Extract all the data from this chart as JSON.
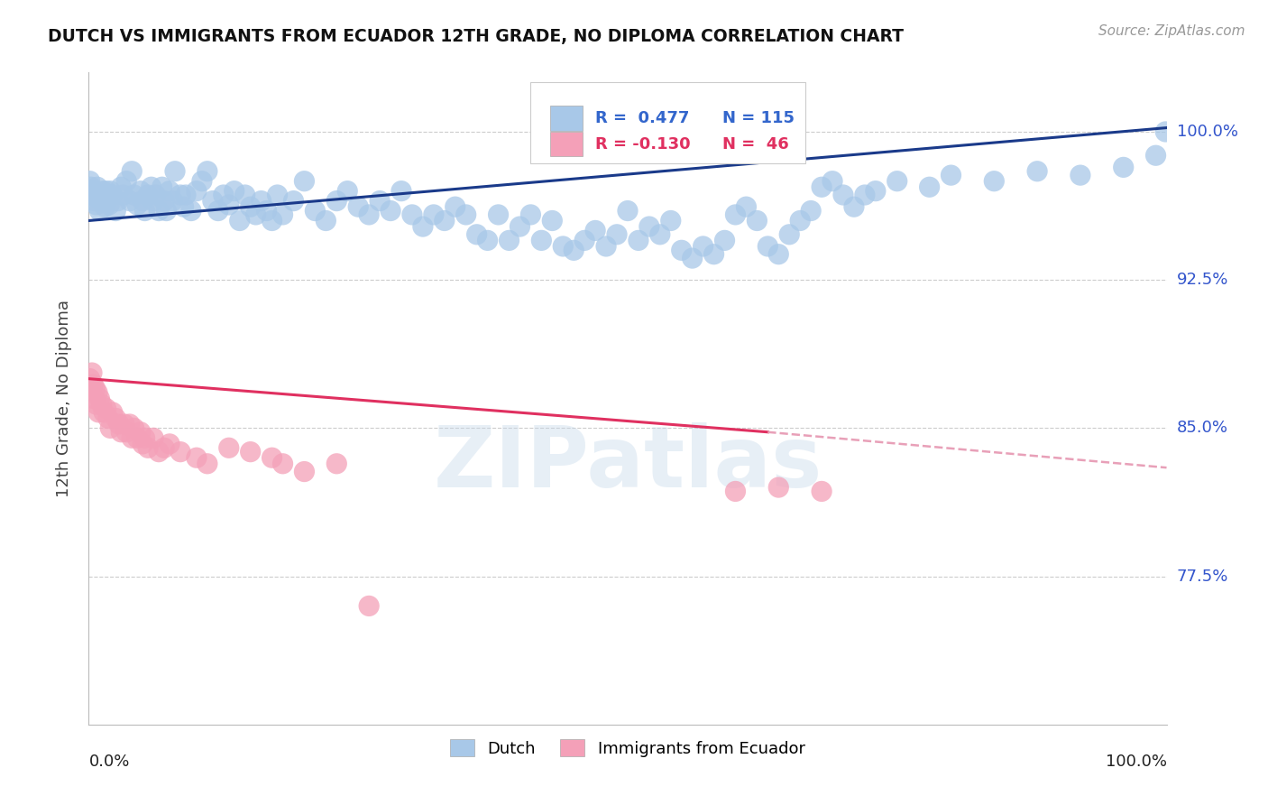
{
  "title": "DUTCH VS IMMIGRANTS FROM ECUADOR 12TH GRADE, NO DIPLOMA CORRELATION CHART",
  "source": "Source: ZipAtlas.com",
  "ylabel": "12th Grade, No Diploma",
  "legend_blue_label": "Dutch",
  "legend_pink_label": "Immigrants from Ecuador",
  "blue_color": "#a8c8e8",
  "pink_color": "#f4a0b8",
  "blue_line_color": "#1a3a8a",
  "pink_line_color": "#e03060",
  "pink_line_dashed_color": "#e8a0b8",
  "watermark": "ZIPatlas",
  "ytick_vals": [
    0.775,
    0.85,
    0.925,
    1.0
  ],
  "ytick_labels": [
    "77.5%",
    "85.0%",
    "92.5%",
    "100.0%"
  ],
  "xlim": [
    0.0,
    1.0
  ],
  "ylim": [
    0.7,
    1.03
  ],
  "blue_line": [
    [
      0.0,
      0.955
    ],
    [
      1.0,
      1.002
    ]
  ],
  "pink_line_solid": [
    [
      0.0,
      0.875
    ],
    [
      0.63,
      0.848
    ]
  ],
  "pink_line_dashed": [
    [
      0.63,
      0.848
    ],
    [
      1.0,
      0.83
    ]
  ],
  "blue_scatter": [
    [
      0.001,
      0.975
    ],
    [
      0.002,
      0.972
    ],
    [
      0.003,
      0.968
    ],
    [
      0.004,
      0.97
    ],
    [
      0.005,
      0.965
    ],
    [
      0.006,
      0.968
    ],
    [
      0.007,
      0.963
    ],
    [
      0.008,
      0.972
    ],
    [
      0.009,
      0.966
    ],
    [
      0.01,
      0.96
    ],
    [
      0.011,
      0.968
    ],
    [
      0.012,
      0.965
    ],
    [
      0.013,
      0.97
    ],
    [
      0.014,
      0.968
    ],
    [
      0.015,
      0.962
    ],
    [
      0.016,
      0.97
    ],
    [
      0.017,
      0.965
    ],
    [
      0.018,
      0.968
    ],
    [
      0.019,
      0.963
    ],
    [
      0.02,
      0.97
    ],
    [
      0.022,
      0.968
    ],
    [
      0.025,
      0.96
    ],
    [
      0.027,
      0.965
    ],
    [
      0.03,
      0.972
    ],
    [
      0.032,
      0.968
    ],
    [
      0.035,
      0.975
    ],
    [
      0.038,
      0.965
    ],
    [
      0.04,
      0.98
    ],
    [
      0.042,
      0.968
    ],
    [
      0.045,
      0.963
    ],
    [
      0.048,
      0.97
    ],
    [
      0.05,
      0.965
    ],
    [
      0.052,
      0.96
    ],
    [
      0.055,
      0.968
    ],
    [
      0.058,
      0.972
    ],
    [
      0.06,
      0.965
    ],
    [
      0.062,
      0.968
    ],
    [
      0.065,
      0.96
    ],
    [
      0.068,
      0.972
    ],
    [
      0.07,
      0.965
    ],
    [
      0.072,
      0.96
    ],
    [
      0.075,
      0.97
    ],
    [
      0.078,
      0.965
    ],
    [
      0.08,
      0.98
    ],
    [
      0.085,
      0.968
    ],
    [
      0.088,
      0.962
    ],
    [
      0.09,
      0.968
    ],
    [
      0.095,
      0.96
    ],
    [
      0.1,
      0.97
    ],
    [
      0.105,
      0.975
    ],
    [
      0.11,
      0.98
    ],
    [
      0.115,
      0.965
    ],
    [
      0.12,
      0.96
    ],
    [
      0.125,
      0.968
    ],
    [
      0.13,
      0.963
    ],
    [
      0.135,
      0.97
    ],
    [
      0.14,
      0.955
    ],
    [
      0.145,
      0.968
    ],
    [
      0.15,
      0.962
    ],
    [
      0.155,
      0.958
    ],
    [
      0.16,
      0.965
    ],
    [
      0.165,
      0.96
    ],
    [
      0.17,
      0.955
    ],
    [
      0.175,
      0.968
    ],
    [
      0.18,
      0.958
    ],
    [
      0.19,
      0.965
    ],
    [
      0.2,
      0.975
    ],
    [
      0.21,
      0.96
    ],
    [
      0.22,
      0.955
    ],
    [
      0.23,
      0.965
    ],
    [
      0.24,
      0.97
    ],
    [
      0.25,
      0.962
    ],
    [
      0.26,
      0.958
    ],
    [
      0.27,
      0.965
    ],
    [
      0.28,
      0.96
    ],
    [
      0.29,
      0.97
    ],
    [
      0.3,
      0.958
    ],
    [
      0.31,
      0.952
    ],
    [
      0.32,
      0.958
    ],
    [
      0.33,
      0.955
    ],
    [
      0.34,
      0.962
    ],
    [
      0.35,
      0.958
    ],
    [
      0.36,
      0.948
    ],
    [
      0.37,
      0.945
    ],
    [
      0.38,
      0.958
    ],
    [
      0.39,
      0.945
    ],
    [
      0.4,
      0.952
    ],
    [
      0.41,
      0.958
    ],
    [
      0.42,
      0.945
    ],
    [
      0.43,
      0.955
    ],
    [
      0.44,
      0.942
    ],
    [
      0.45,
      0.94
    ],
    [
      0.46,
      0.945
    ],
    [
      0.47,
      0.95
    ],
    [
      0.48,
      0.942
    ],
    [
      0.49,
      0.948
    ],
    [
      0.5,
      0.96
    ],
    [
      0.51,
      0.945
    ],
    [
      0.52,
      0.952
    ],
    [
      0.53,
      0.948
    ],
    [
      0.54,
      0.955
    ],
    [
      0.55,
      0.94
    ],
    [
      0.56,
      0.936
    ],
    [
      0.57,
      0.942
    ],
    [
      0.58,
      0.938
    ],
    [
      0.59,
      0.945
    ],
    [
      0.6,
      0.958
    ],
    [
      0.61,
      0.962
    ],
    [
      0.62,
      0.955
    ],
    [
      0.63,
      0.942
    ],
    [
      0.64,
      0.938
    ],
    [
      0.65,
      0.948
    ],
    [
      0.66,
      0.955
    ],
    [
      0.67,
      0.96
    ],
    [
      0.68,
      0.972
    ],
    [
      0.69,
      0.975
    ],
    [
      0.7,
      0.968
    ],
    [
      0.71,
      0.962
    ],
    [
      0.72,
      0.968
    ],
    [
      0.73,
      0.97
    ],
    [
      0.75,
      0.975
    ],
    [
      0.78,
      0.972
    ],
    [
      0.8,
      0.978
    ],
    [
      0.84,
      0.975
    ],
    [
      0.88,
      0.98
    ],
    [
      0.92,
      0.978
    ],
    [
      0.96,
      0.982
    ],
    [
      0.99,
      0.988
    ],
    [
      0.999,
      1.0
    ]
  ],
  "pink_scatter": [
    [
      0.001,
      0.875
    ],
    [
      0.002,
      0.87
    ],
    [
      0.003,
      0.878
    ],
    [
      0.004,
      0.872
    ],
    [
      0.005,
      0.865
    ],
    [
      0.006,
      0.87
    ],
    [
      0.007,
      0.862
    ],
    [
      0.008,
      0.868
    ],
    [
      0.009,
      0.858
    ],
    [
      0.01,
      0.865
    ],
    [
      0.012,
      0.862
    ],
    [
      0.014,
      0.858
    ],
    [
      0.016,
      0.86
    ],
    [
      0.018,
      0.855
    ],
    [
      0.02,
      0.85
    ],
    [
      0.022,
      0.858
    ],
    [
      0.025,
      0.855
    ],
    [
      0.028,
      0.852
    ],
    [
      0.03,
      0.848
    ],
    [
      0.033,
      0.852
    ],
    [
      0.035,
      0.848
    ],
    [
      0.038,
      0.852
    ],
    [
      0.04,
      0.845
    ],
    [
      0.042,
      0.85
    ],
    [
      0.045,
      0.845
    ],
    [
      0.048,
      0.848
    ],
    [
      0.05,
      0.842
    ],
    [
      0.052,
      0.845
    ],
    [
      0.055,
      0.84
    ],
    [
      0.06,
      0.845
    ],
    [
      0.065,
      0.838
    ],
    [
      0.07,
      0.84
    ],
    [
      0.075,
      0.842
    ],
    [
      0.085,
      0.838
    ],
    [
      0.1,
      0.835
    ],
    [
      0.11,
      0.832
    ],
    [
      0.13,
      0.84
    ],
    [
      0.15,
      0.838
    ],
    [
      0.17,
      0.835
    ],
    [
      0.18,
      0.832
    ],
    [
      0.2,
      0.828
    ],
    [
      0.23,
      0.832
    ],
    [
      0.26,
      0.76
    ],
    [
      0.6,
      0.818
    ],
    [
      0.64,
      0.82
    ],
    [
      0.68,
      0.818
    ]
  ]
}
